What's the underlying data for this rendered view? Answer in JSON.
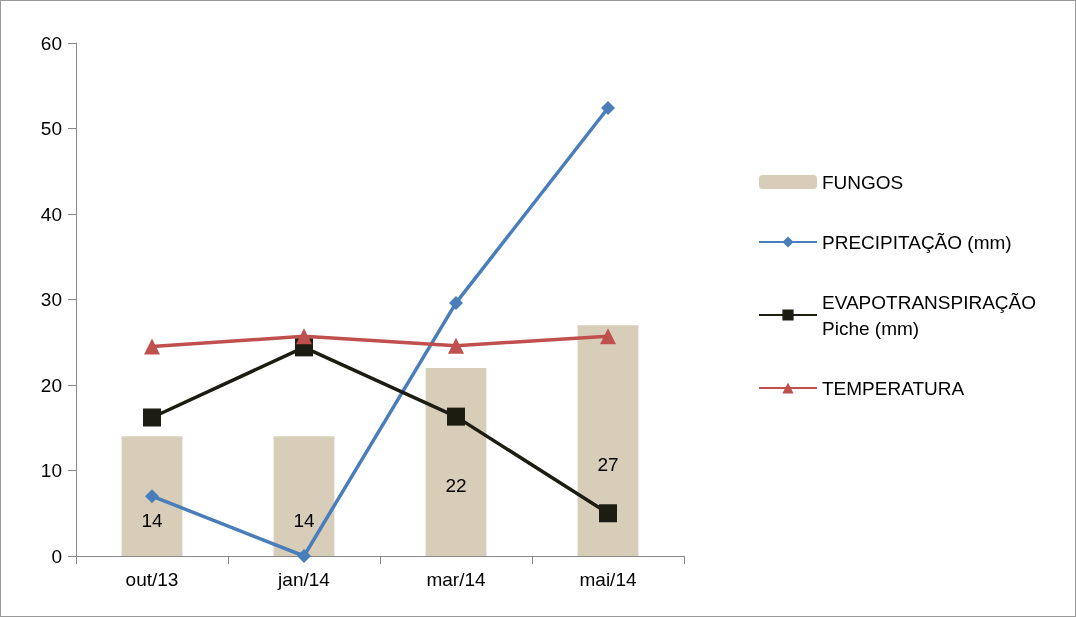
{
  "chart_data": {
    "type": "bar",
    "categories": [
      "out/13",
      "jan/14",
      "mar/14",
      "mai/14"
    ],
    "series": [
      {
        "name": "FUNGOS",
        "color": "#d8cdb9",
        "values": [
          14,
          14,
          22,
          27
        ],
        "data_labels": true
      },
      {
        "name": "PRECIPITAÇÃO (mm)",
        "type": "line",
        "color": "#4a7ebb",
        "marker": "diamond",
        "values": [
          7.0,
          0,
          29.6,
          52.4
        ]
      },
      {
        "name": "EVAPOTRANSPIRAÇÃO Piche (mm)",
        "type": "line",
        "color": "#1c1c12",
        "marker": "square",
        "values": [
          16.2,
          24.4,
          16.3,
          5.0
        ]
      },
      {
        "name": "TEMPERATURA",
        "type": "line",
        "color": "#c0504d",
        "marker": "triangle",
        "values": [
          24.5,
          25.7,
          24.6,
          25.7
        ]
      }
    ],
    "ylim": [
      0,
      60
    ],
    "yticks": [
      0,
      10,
      20,
      30,
      40,
      50,
      60
    ],
    "grid": false,
    "legend": "right",
    "line_style": "solid"
  }
}
